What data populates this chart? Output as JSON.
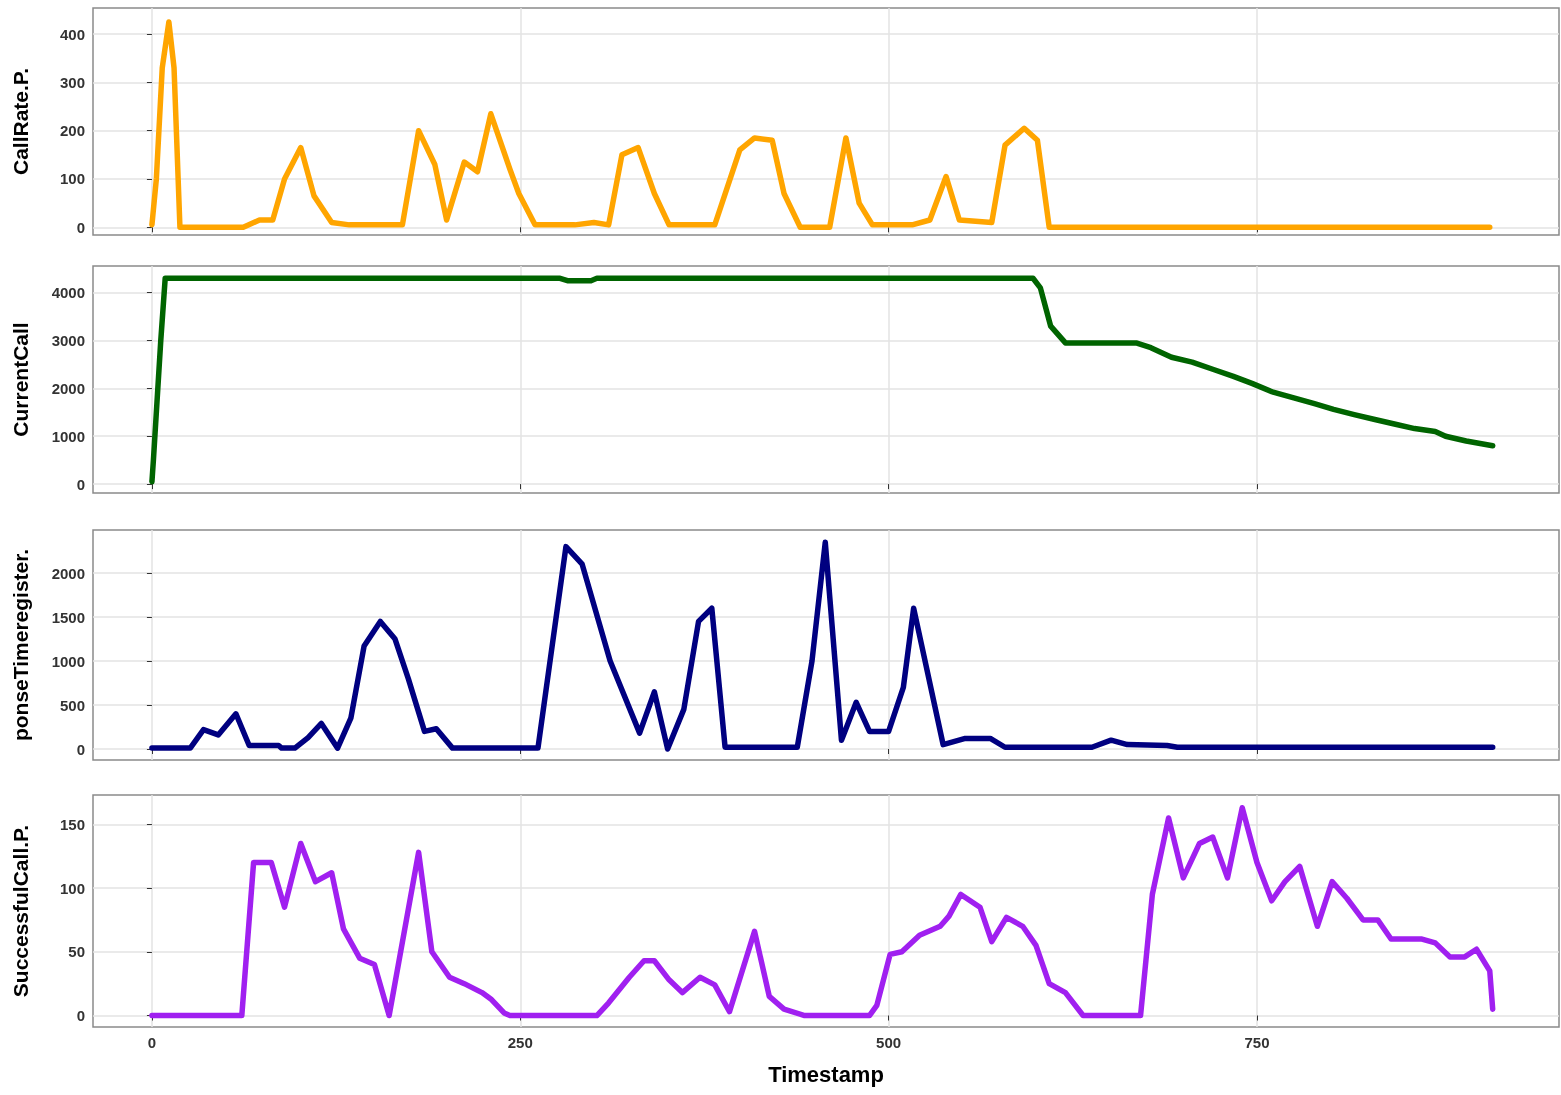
{
  "chart_data": [
    {
      "type": "line",
      "ylabel": "CallRate.P.",
      "color": "#ffa500",
      "xlim": [
        -40,
        955
      ],
      "xticks": [
        0,
        250,
        500,
        750
      ],
      "ylim": [
        -16,
        454
      ],
      "yticks": [
        0,
        100,
        200,
        300,
        400
      ],
      "grid": true,
      "tick_labels": "y",
      "x": [
        0,
        3,
        7,
        11.5,
        15,
        19,
        22,
        62,
        73,
        82,
        90,
        101,
        110,
        122,
        134,
        170,
        181,
        192,
        200,
        212,
        221,
        230,
        243,
        249,
        260,
        287,
        300,
        310,
        319,
        330,
        341,
        351,
        382,
        399,
        409,
        421,
        429,
        440,
        460,
        471,
        480,
        489,
        516,
        528,
        539,
        548,
        570,
        579,
        592,
        601,
        609,
        908
      ],
      "values": [
        5,
        100,
        330,
        425,
        330,
        0,
        0,
        0,
        15,
        15,
        100,
        165,
        65,
        10,
        5,
        5,
        200,
        130,
        15,
        135,
        115,
        235,
        120,
        70,
        5,
        5,
        10,
        5,
        150,
        165,
        70,
        5,
        5,
        160,
        185,
        180,
        70,
        0,
        0,
        185,
        50,
        5,
        5,
        15,
        105,
        15,
        10,
        170,
        205,
        180,
        0,
        0
      ]
    },
    {
      "type": "line",
      "ylabel": "CurrentCall",
      "color": "#006400",
      "xlim": [
        -40,
        955
      ],
      "xticks": [
        0,
        250,
        500,
        750
      ],
      "ylim": [
        -186,
        4557
      ],
      "yticks": [
        0,
        1000,
        2000,
        3000,
        4000
      ],
      "grid": true,
      "tick_labels": "y",
      "x": [
        0,
        1,
        4,
        6,
        9,
        277,
        282,
        298,
        302,
        598,
        603,
        610,
        620,
        668,
        678,
        692,
        706,
        720,
        734,
        747,
        761,
        775,
        789,
        802,
        816,
        830,
        844,
        857,
        871,
        878,
        892,
        910
      ],
      "values": [
        50,
        500,
        2000,
        3000,
        4300,
        4300,
        4250,
        4250,
        4300,
        4300,
        4100,
        3300,
        2950,
        2950,
        2850,
        2650,
        2550,
        2400,
        2250,
        2100,
        1920,
        1800,
        1680,
        1560,
        1450,
        1350,
        1250,
        1160,
        1100,
        1000,
        900,
        800
      ]
    },
    {
      "type": "line",
      "ylabel": "ponseTimeregister.",
      "color": "#000080",
      "xlim": [
        -40,
        955
      ],
      "xticks": [
        0,
        250,
        500,
        750
      ],
      "ylim": [
        -125,
        2489
      ],
      "yticks": [
        0,
        500,
        1000,
        1500,
        2000
      ],
      "grid": true,
      "tick_labels": "y",
      "x": [
        0,
        26,
        35,
        45,
        57,
        66,
        86,
        88,
        97,
        106,
        115,
        126,
        135,
        144,
        155,
        165,
        174,
        185,
        193,
        204,
        262,
        281,
        292,
        311,
        331,
        341,
        350,
        361,
        371,
        380,
        389,
        438,
        448,
        457,
        468,
        478,
        487,
        500,
        510,
        517,
        537,
        552,
        569,
        579,
        638,
        651,
        662,
        689,
        696,
        910
      ],
      "values": [
        10,
        10,
        220,
        160,
        400,
        40,
        40,
        10,
        10,
        130,
        290,
        10,
        350,
        1170,
        1450,
        1250,
        800,
        200,
        230,
        10,
        10,
        2300,
        2100,
        1000,
        180,
        650,
        0,
        450,
        1450,
        1600,
        20,
        20,
        1000,
        2350,
        100,
        530,
        200,
        200,
        700,
        1600,
        50,
        120,
        120,
        20,
        20,
        100,
        50,
        40,
        20,
        20
      ]
    },
    {
      "type": "line",
      "ylabel": "SuccessfulCall.P.",
      "xlabel": "Timestamp",
      "color": "#a020f0",
      "xlim": [
        -40,
        955
      ],
      "xticks": [
        0,
        250,
        500,
        750
      ],
      "ylim": [
        -9,
        173
      ],
      "yticks": [
        0,
        50,
        100,
        150
      ],
      "grid": true,
      "x": [
        0,
        61,
        69,
        81,
        90,
        101,
        111,
        122,
        130,
        141,
        151,
        161,
        181,
        190,
        202,
        212,
        224,
        230,
        239,
        243,
        302,
        310,
        324,
        334,
        341,
        351,
        360,
        372,
        382,
        392,
        409,
        419,
        429,
        443,
        487,
        492,
        501,
        509,
        521,
        535,
        541,
        549,
        562,
        570,
        580,
        591,
        600,
        609,
        620,
        632,
        671,
        679,
        690,
        700,
        711,
        720,
        730,
        740,
        750,
        760,
        769,
        779,
        791,
        801,
        811,
        822,
        832,
        841,
        862,
        871,
        881,
        891,
        899,
        908,
        910
      ],
      "values": [
        0,
        0,
        120,
        120,
        85,
        135,
        105,
        112,
        68,
        45,
        40,
        0,
        128,
        50,
        30,
        25,
        18,
        13,
        2,
        0,
        0,
        10,
        30,
        43,
        43,
        28,
        18,
        30,
        24,
        3,
        66,
        15,
        5,
        0,
        0,
        8,
        48,
        50,
        63,
        70,
        78,
        95,
        85,
        58,
        77,
        70,
        55,
        25,
        18,
        0,
        0,
        95,
        155,
        108,
        135,
        140,
        108,
        163,
        120,
        90,
        105,
        117,
        70,
        105,
        92,
        75,
        75,
        60,
        60,
        57,
        46,
        46,
        52,
        35,
        5
      ]
    }
  ]
}
